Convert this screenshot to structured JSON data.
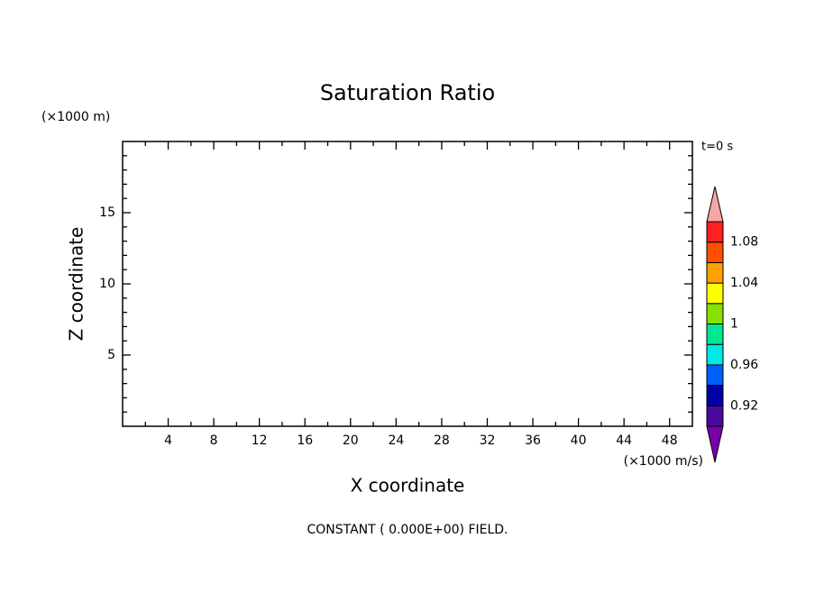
{
  "chart_data": {
    "type": "contour",
    "title": "Saturation Ratio",
    "x_label": "X coordinate",
    "y_label": "Z coordinate",
    "x_unit": "(×1000 m/s)",
    "y_unit": "(×1000 m)",
    "time_label": "t=0 s",
    "footer": "CONSTANT ( 0.000E+00) FIELD.",
    "xlim": [
      0,
      50
    ],
    "ylim": [
      0,
      20
    ],
    "xticks": [
      4,
      8,
      12,
      16,
      20,
      24,
      28,
      32,
      36,
      40,
      44,
      48
    ],
    "minor_xticks": [
      2,
      6,
      10,
      14,
      18,
      22,
      26,
      30,
      34,
      38,
      42,
      46
    ],
    "yticks": [
      5,
      10,
      15
    ],
    "minor_yticks": [
      1,
      2,
      3,
      4,
      6,
      7,
      8,
      9,
      11,
      12,
      13,
      14,
      16,
      17,
      18,
      19
    ],
    "colorbar": {
      "levels": [
        0.9,
        0.92,
        0.94,
        0.96,
        0.98,
        1,
        1.02,
        1.04,
        1.06,
        1.08,
        1.1
      ],
      "colors": [
        "#4a0aa0",
        "#0000a8",
        "#0060ff",
        "#00e8e8",
        "#00e890",
        "#88e000",
        "#ffff00",
        "#ffa000",
        "#ff5000",
        "#ff2020"
      ],
      "under_color": "#7a00a8",
      "over_color": "#f4a8a8",
      "ticks": [
        0.92,
        0.96,
        1,
        1.04,
        1.08
      ]
    }
  }
}
